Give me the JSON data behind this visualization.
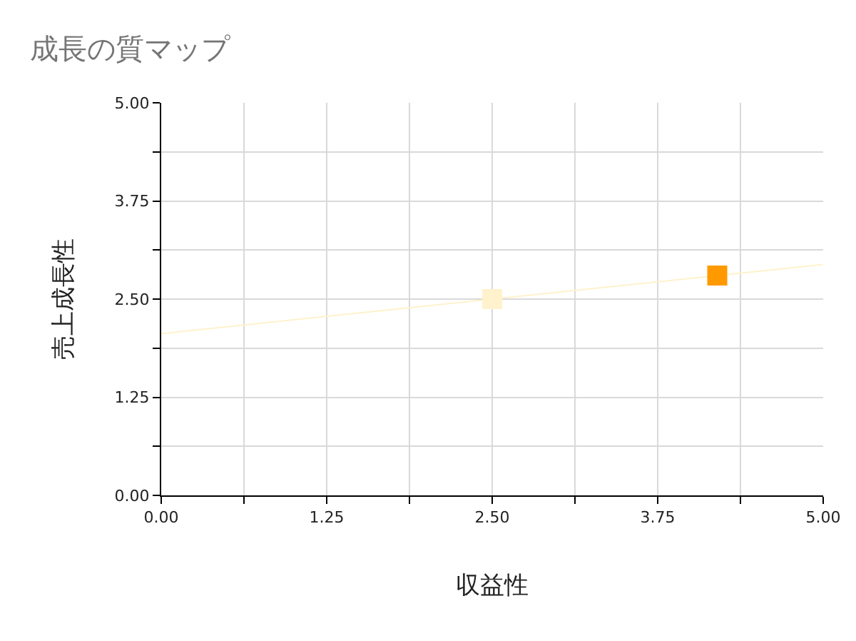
{
  "chart_data": {
    "type": "scatter",
    "title": "成長の質マップ",
    "xlabel": "収益性",
    "ylabel": "売上成長性",
    "series": [
      {
        "type": "line",
        "x": [
          0,
          5
        ],
        "values": [
          2.06,
          2.94
        ],
        "color": "#fff2cc",
        "marker": "none"
      },
      {
        "x": [
          2.5
        ],
        "values": [
          2.5
        ],
        "color": "#fff2cc"
      },
      {
        "x": [
          4.2
        ],
        "values": [
          2.8
        ],
        "color": "#ff9900"
      }
    ],
    "marker": "square",
    "grid": true,
    "xlim": [
      0,
      5
    ],
    "ylim": [
      0,
      5
    ],
    "xticks": [
      {
        "value": 0,
        "label": "0.00"
      },
      {
        "value": 0.625,
        "label": null
      },
      {
        "value": 1.25,
        "label": "1.25"
      },
      {
        "value": 1.875,
        "label": null
      },
      {
        "value": 2.5,
        "label": "2.50"
      },
      {
        "value": 3.125,
        "label": null
      },
      {
        "value": 3.75,
        "label": "3.75"
      },
      {
        "value": 4.375,
        "label": null
      },
      {
        "value": 5,
        "label": "5.00"
      }
    ],
    "yticks": [
      {
        "value": 0,
        "label": "0.00"
      },
      {
        "value": 0.625,
        "label": null
      },
      {
        "value": 1.25,
        "label": "1.25"
      },
      {
        "value": 1.875,
        "label": null
      },
      {
        "value": 2.5,
        "label": "2.50"
      },
      {
        "value": 3.125,
        "label": null
      },
      {
        "value": 3.75,
        "label": "3.75"
      },
      {
        "value": 4.375,
        "label": null
      },
      {
        "value": 5,
        "label": "5.00"
      }
    ]
  }
}
